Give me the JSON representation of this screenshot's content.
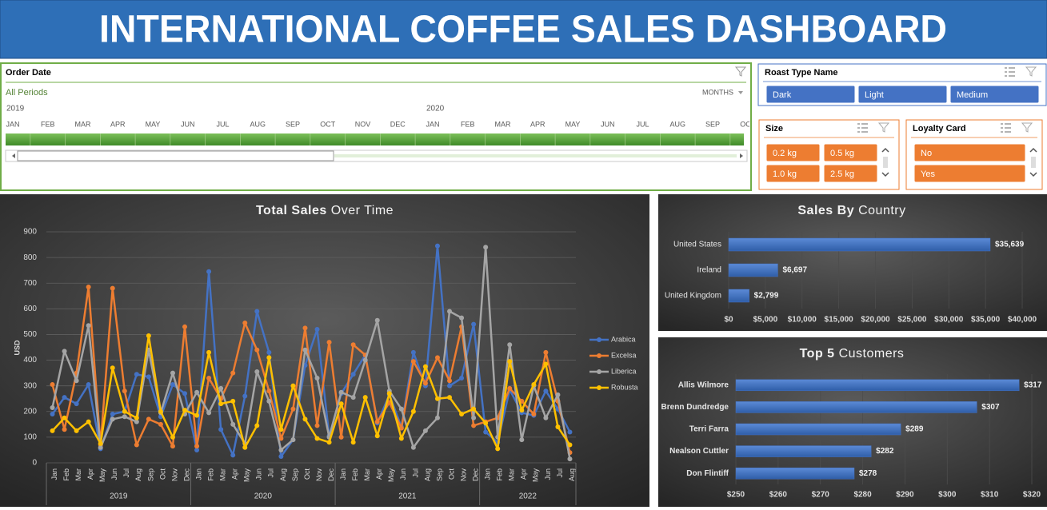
{
  "header": {
    "title": "INTERNATIONAL COFFEE SALES DASHBOARD"
  },
  "timeline": {
    "title": "Order Date",
    "filter": "All Periods",
    "level": "MONTHS",
    "years": [
      "2019",
      "2020"
    ],
    "months": [
      "JAN",
      "FEB",
      "MAR",
      "APR",
      "MAY",
      "JUN",
      "JUL",
      "AUG",
      "SEP",
      "OCT",
      "NOV",
      "DEC",
      "JAN",
      "FEB",
      "MAR",
      "APR",
      "MAY",
      "JUN",
      "JUL",
      "AUG",
      "SEP",
      "OCT"
    ]
  },
  "slicers": [
    {
      "title": "Roast Type Name",
      "items": [
        "Dark",
        "Light",
        "Medium"
      ],
      "color": "#4472c4"
    },
    {
      "title": "Size",
      "items": [
        "0.2 kg",
        "0.5 kg",
        "1.0 kg",
        "2.5 kg"
      ],
      "color": "#ed7d31"
    },
    {
      "title": "Loyalty Card",
      "items": [
        "No",
        "Yes"
      ],
      "color": "#ed7d31"
    }
  ],
  "chart_data": [
    {
      "type": "line",
      "title": [
        "Total Sales",
        "Over Time"
      ],
      "ylabel": "USD",
      "categories": [
        "Jan",
        "Feb",
        "Mar",
        "Apr",
        "May",
        "Jun",
        "Jul",
        "Aug",
        "Sep",
        "Oct",
        "Nov",
        "Dec",
        "Jan",
        "Feb",
        "Mar",
        "Apr",
        "May",
        "Jun",
        "Jul",
        "Aug",
        "Sep",
        "Oct",
        "Nov",
        "Dec",
        "Jan",
        "Feb",
        "Mar",
        "Apr",
        "May",
        "Jun",
        "Jul",
        "Aug",
        "Sep",
        "Oct",
        "Nov",
        "Dec",
        "Jan",
        "Feb",
        "Mar",
        "Apr",
        "May",
        "Jun",
        "Jul",
        "Aug"
      ],
      "x_groups": [
        "2019",
        "2020",
        "2021",
        "2022"
      ],
      "ylim": [
        0,
        900
      ],
      "yticks": [
        0,
        100,
        200,
        300,
        400,
        500,
        600,
        700,
        800,
        900
      ],
      "grid": true,
      "legend": "right",
      "series": [
        {
          "name": "Arabica",
          "color": "#4472c4",
          "values": [
            190,
            255,
            230,
            305,
            55,
            190,
            200,
            345,
            335,
            180,
            305,
            270,
            50,
            745,
            130,
            30,
            260,
            590,
            430,
            25,
            90,
            380,
            520,
            105,
            270,
            345,
            420,
            155,
            265,
            140,
            430,
            300,
            845,
            300,
            330,
            540,
            120,
            80,
            285,
            195,
            185,
            280,
            210,
            120
          ]
        },
        {
          "name": "Excelsa",
          "color": "#ed7d31",
          "values": [
            305,
            130,
            350,
            685,
            70,
            680,
            280,
            70,
            170,
            150,
            65,
            530,
            65,
            330,
            250,
            350,
            545,
            440,
            280,
            95,
            210,
            525,
            145,
            470,
            100,
            460,
            420,
            160,
            235,
            135,
            395,
            310,
            410,
            320,
            530,
            145,
            160,
            175,
            290,
            240,
            190,
            430,
            240,
            40
          ]
        },
        {
          "name": "Liberica",
          "color": "#a5a5a5",
          "values": [
            215,
            435,
            320,
            535,
            60,
            170,
            180,
            160,
            440,
            195,
            350,
            190,
            275,
            195,
            290,
            150,
            75,
            355,
            240,
            50,
            90,
            440,
            330,
            100,
            275,
            255,
            400,
            555,
            280,
            210,
            60,
            125,
            175,
            590,
            565,
            175,
            840,
            100,
            460,
            90,
            300,
            175,
            265,
            15
          ]
        },
        {
          "name": "Robusta",
          "color": "#ffc000",
          "values": [
            125,
            175,
            125,
            160,
            75,
            370,
            200,
            175,
            495,
            200,
            100,
            205,
            185,
            430,
            230,
            240,
            60,
            145,
            410,
            130,
            300,
            170,
            95,
            80,
            230,
            80,
            255,
            105,
            270,
            95,
            200,
            375,
            250,
            255,
            190,
            210,
            155,
            55,
            395,
            205,
            305,
            385,
            140,
            70
          ]
        }
      ]
    },
    {
      "type": "hbar",
      "title": [
        "Sales By",
        "Country"
      ],
      "color": "#4472c4",
      "categories": [
        "United States",
        "Ireland",
        "United Kingdom"
      ],
      "values": [
        35639,
        6697,
        2799
      ],
      "value_labels": [
        "$35,639",
        "$6,697",
        "$2,799"
      ],
      "xlim": [
        0,
        40000
      ],
      "xticks": [
        {
          "value": 0,
          "label": "$0"
        },
        {
          "value": 5000,
          "label": "$5,000"
        },
        {
          "value": 10000,
          "label": "$10,000"
        },
        {
          "value": 15000,
          "label": "$15,000"
        },
        {
          "value": 20000,
          "label": "$20,000"
        },
        {
          "value": 25000,
          "label": "$25,000"
        },
        {
          "value": 30000,
          "label": "$30,000"
        },
        {
          "value": 35000,
          "label": "$35,000"
        },
        {
          "value": 40000,
          "label": "$40,000"
        }
      ],
      "grid": true
    },
    {
      "type": "hbar",
      "title": [
        "Top 5",
        "Customers"
      ],
      "color": "#4472c4",
      "categories": [
        "Allis Wilmore",
        "Brenn Dundredge",
        "Terri Farra",
        "Nealson Cuttler",
        "Don Flintiff"
      ],
      "values": [
        317,
        307,
        289,
        282,
        278
      ],
      "value_labels": [
        "$317",
        "$307",
        "$289",
        "$282",
        "$278"
      ],
      "xlim": [
        250,
        320
      ],
      "xticks": [
        {
          "value": 250,
          "label": "$250"
        },
        {
          "value": 260,
          "label": "$260"
        },
        {
          "value": 270,
          "label": "$270"
        },
        {
          "value": 280,
          "label": "$280"
        },
        {
          "value": 290,
          "label": "$290"
        },
        {
          "value": 300,
          "label": "$300"
        },
        {
          "value": 310,
          "label": "$310"
        },
        {
          "value": 320,
          "label": "$320"
        }
      ],
      "grid": true
    }
  ]
}
